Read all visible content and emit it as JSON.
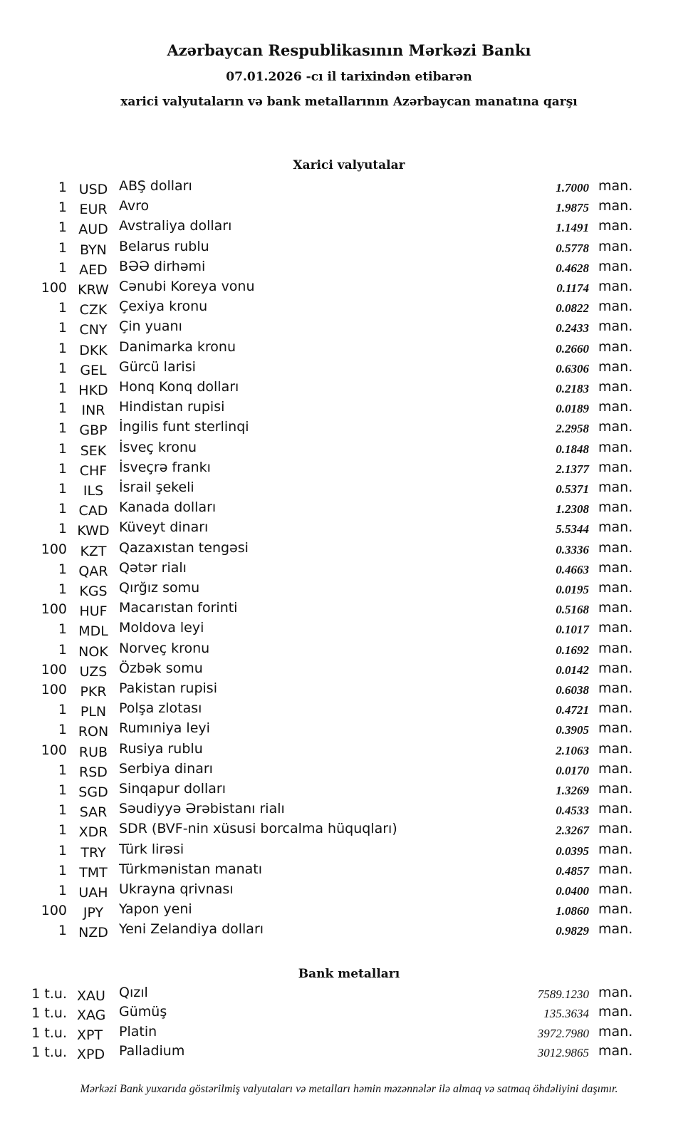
{
  "header": {
    "title": "Azərbaycan Respublikasının Mərkəzi Bankı",
    "date_line": "07.01.2026 -cı il tarixindən etibarən",
    "subtitle": "xarici valyutaların və bank metallarının Azərbaycan manatına qarşı"
  },
  "currencies": {
    "heading": "Xarici valyutalar",
    "unit": "man.",
    "rows": [
      {
        "qty": "1",
        "code": "USD",
        "name": "ABŞ dolları",
        "value": "1.7000"
      },
      {
        "qty": "1",
        "code": "EUR",
        "name": "Avro",
        "value": "1.9875"
      },
      {
        "qty": "1",
        "code": "AUD",
        "name": "Avstraliya dolları",
        "value": "1.1491"
      },
      {
        "qty": "1",
        "code": "BYN",
        "name": "Belarus rublu",
        "value": "0.5778"
      },
      {
        "qty": "1",
        "code": "AED",
        "name": "BƏƏ dirhəmi",
        "value": "0.4628"
      },
      {
        "qty": "100",
        "code": "KRW",
        "name": "Cənubi Koreya vonu",
        "value": "0.1174"
      },
      {
        "qty": "1",
        "code": "CZK",
        "name": "Çexiya kronu",
        "value": "0.0822"
      },
      {
        "qty": "1",
        "code": "CNY",
        "name": "Çin yuanı",
        "value": "0.2433"
      },
      {
        "qty": "1",
        "code": "DKK",
        "name": "Danimarka kronu",
        "value": "0.2660"
      },
      {
        "qty": "1",
        "code": "GEL",
        "name": "Gürcü larisi",
        "value": "0.6306"
      },
      {
        "qty": "1",
        "code": "HKD",
        "name": "Honq Konq dolları",
        "value": "0.2183"
      },
      {
        "qty": "1",
        "code": "INR",
        "name": "Hindistan rupisi",
        "value": "0.0189"
      },
      {
        "qty": "1",
        "code": "GBP",
        "name": "İngilis funt sterlinqi",
        "value": "2.2958"
      },
      {
        "qty": "1",
        "code": "SEK",
        "name": "İsveç kronu",
        "value": "0.1848"
      },
      {
        "qty": "1",
        "code": "CHF",
        "name": "İsveçrə frankı",
        "value": "2.1377"
      },
      {
        "qty": "1",
        "code": "ILS",
        "name": "İsrail şekeli",
        "value": "0.5371"
      },
      {
        "qty": "1",
        "code": "CAD",
        "name": "Kanada dolları",
        "value": "1.2308"
      },
      {
        "qty": "1",
        "code": "KWD",
        "name": "Küveyt dinarı",
        "value": "5.5344"
      },
      {
        "qty": "100",
        "code": "KZT",
        "name": "Qazaxıstan tengəsi",
        "value": "0.3336"
      },
      {
        "qty": "1",
        "code": "QAR",
        "name": "Qətər rialı",
        "value": "0.4663"
      },
      {
        "qty": "1",
        "code": "KGS",
        "name": "Qırğız somu",
        "value": "0.0195"
      },
      {
        "qty": "100",
        "code": "HUF",
        "name": "Macarıstan forinti",
        "value": "0.5168"
      },
      {
        "qty": "1",
        "code": "MDL",
        "name": "Moldova leyi",
        "value": "0.1017"
      },
      {
        "qty": "1",
        "code": "NOK",
        "name": "Norveç kronu",
        "value": "0.1692"
      },
      {
        "qty": "100",
        "code": "UZS",
        "name": "Özbək somu",
        "value": "0.0142"
      },
      {
        "qty": "100",
        "code": "PKR",
        "name": "Pakistan rupisi",
        "value": "0.6038"
      },
      {
        "qty": "1",
        "code": "PLN",
        "name": "Polşa zlotası",
        "value": "0.4721"
      },
      {
        "qty": "1",
        "code": "RON",
        "name": "Rumıniya leyi",
        "value": "0.3905"
      },
      {
        "qty": "100",
        "code": "RUB",
        "name": "Rusiya rublu",
        "value": "2.1063"
      },
      {
        "qty": "1",
        "code": "RSD",
        "name": "Serbiya dinarı",
        "value": "0.0170"
      },
      {
        "qty": "1",
        "code": "SGD",
        "name": "Sinqapur dolları",
        "value": "1.3269"
      },
      {
        "qty": "1",
        "code": "SAR",
        "name": "Səudiyyə Ərəbistanı rialı",
        "value": "0.4533"
      },
      {
        "qty": "1",
        "code": "XDR",
        "name": "SDR (BVF-nin xüsusi borcalma hüquqları)",
        "value": "2.3267"
      },
      {
        "qty": "1",
        "code": "TRY",
        "name": "Türk lirəsi",
        "value": "0.0395"
      },
      {
        "qty": "1",
        "code": "TMT",
        "name": "Türkmənistan manatı",
        "value": "0.4857"
      },
      {
        "qty": "1",
        "code": "UAH",
        "name": "Ukrayna qrivnası",
        "value": "0.0400"
      },
      {
        "qty": "100",
        "code": "JPY",
        "name": "Yapon yeni",
        "value": "1.0860"
      },
      {
        "qty": "1",
        "code": "NZD",
        "name": "Yeni Zelandiya dolları",
        "value": "0.9829"
      }
    ]
  },
  "metals": {
    "heading": "Bank metalları",
    "unit": "man.",
    "rows": [
      {
        "qty": "1 t.u.",
        "code": "XAU",
        "name": "Qızıl",
        "value": "7589.1230"
      },
      {
        "qty": "1 t.u.",
        "code": "XAG",
        "name": "Gümüş",
        "value": "135.3634"
      },
      {
        "qty": "1 t.u.",
        "code": "XPT",
        "name": "Platin",
        "value": "3972.7980"
      },
      {
        "qty": "1 t.u.",
        "code": "XPD",
        "name": "Palladium",
        "value": "3012.9865"
      }
    ]
  },
  "footer": "Mərkəzi Bank yuxarıda göstərilmiş valyutaları və metalları həmin məzənnələr ilə almaq və satmaq öhdəliyini daşımır."
}
